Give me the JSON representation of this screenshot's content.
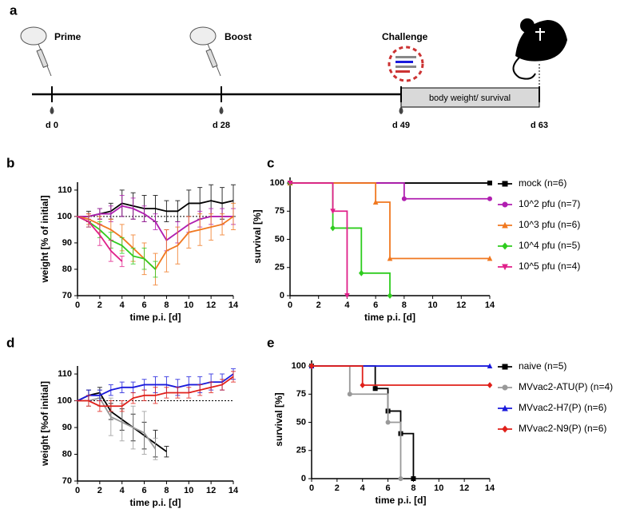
{
  "timeline": {
    "label": "a",
    "events": [
      {
        "label": "Prime"
      },
      {
        "label": "Boost"
      },
      {
        "label": "Challenge"
      }
    ],
    "days": [
      "d 0",
      "d 28",
      "d 49",
      "d 63"
    ],
    "period": "body weight/ survival"
  },
  "chart_data": [
    {
      "type": "line",
      "panel": "b",
      "xlabel": "time p.i. [d]",
      "ylabel": "weight [% of initial]",
      "x": [
        0,
        1,
        2,
        3,
        4,
        5,
        6,
        7,
        8,
        9,
        10,
        11,
        12,
        13,
        14
      ],
      "xlim": [
        0,
        14
      ],
      "xticks": [
        0,
        2,
        4,
        6,
        8,
        10,
        12,
        14
      ],
      "ylim": [
        70,
        113
      ],
      "yticks": [
        70,
        80,
        90,
        100,
        110
      ],
      "ref_line": 100,
      "series": [
        {
          "color": "#000000",
          "values": [
            100,
            100,
            101,
            102,
            105,
            104,
            103,
            103,
            102,
            102,
            105,
            105,
            106,
            105,
            106
          ],
          "errors": [
            0,
            2,
            2,
            3,
            5,
            5,
            5,
            5,
            4,
            4,
            5,
            6,
            6,
            6,
            6
          ]
        },
        {
          "color": "#b01eb0",
          "values": [
            100,
            100,
            101,
            101,
            104,
            103,
            101,
            98,
            91,
            94,
            97,
            99,
            100,
            100,
            100
          ],
          "errors": [
            0,
            1,
            2,
            3,
            4,
            4,
            3,
            3,
            4,
            4,
            3,
            3,
            3,
            3,
            3
          ]
        },
        {
          "color": "#f07820",
          "values": [
            100,
            99,
            97,
            95,
            92,
            88,
            84,
            80,
            87,
            89,
            94,
            95,
            96,
            97,
            100
          ],
          "errors": [
            0,
            2,
            3,
            4,
            5,
            5,
            6,
            6,
            8,
            7,
            6,
            6,
            5,
            4,
            5
          ]
        },
        {
          "color": "#2ecc1e",
          "values": [
            100,
            98,
            95,
            91,
            89,
            85,
            84,
            80,
            null,
            null,
            null,
            null,
            null,
            null,
            null
          ],
          "errors": [
            0,
            2,
            3,
            3,
            3,
            3,
            4,
            3,
            null,
            null,
            null,
            null,
            null,
            null,
            null
          ]
        },
        {
          "color": "#e0208a",
          "values": [
            100,
            98,
            93,
            87,
            83,
            null,
            null,
            null,
            null,
            null,
            null,
            null,
            null,
            null,
            null
          ],
          "errors": [
            0,
            2,
            4,
            4,
            2,
            null,
            null,
            null,
            null,
            null,
            null,
            null,
            null,
            null,
            null
          ]
        }
      ]
    },
    {
      "type": "step",
      "panel": "c",
      "xlabel": "time p.i. [d]",
      "ylabel": "survival [%]",
      "xlim": [
        0,
        14
      ],
      "xticks": [
        0,
        2,
        4,
        6,
        8,
        10,
        12,
        14
      ],
      "ylim": [
        0,
        105
      ],
      "yticks": [
        0,
        25,
        50,
        75,
        100
      ],
      "legend": "right",
      "series": [
        {
          "name": "mock (n=6)",
          "color": "#000000",
          "marker": "square",
          "x": [
            0,
            14
          ],
          "values": [
            100,
            100
          ]
        },
        {
          "name": "10^2 pfu (n=7)",
          "color": "#b01eb0",
          "marker": "circle",
          "x": [
            0,
            8,
            14
          ],
          "values": [
            100,
            86,
            86
          ]
        },
        {
          "name": "10^3 pfu (n=6)",
          "color": "#f07820",
          "marker": "triangle",
          "x": [
            0,
            6,
            7,
            14
          ],
          "values": [
            100,
            83,
            33,
            33
          ]
        },
        {
          "name": "10^4 pfu (n=5)",
          "color": "#2ecc1e",
          "marker": "diamond",
          "x": [
            0,
            3,
            5,
            7
          ],
          "values": [
            100,
            60,
            20,
            0
          ]
        },
        {
          "name": "10^5 pfu (n=4)",
          "color": "#e0208a",
          "marker": "triangle-down",
          "x": [
            0,
            3,
            4
          ],
          "values": [
            100,
            75,
            0
          ]
        }
      ]
    },
    {
      "type": "line",
      "panel": "d",
      "xlabel": "time p.i. [d]",
      "ylabel": "weight [%of initial]",
      "x": [
        0,
        1,
        2,
        3,
        4,
        5,
        6,
        7,
        8,
        9,
        10,
        11,
        12,
        13,
        14
      ],
      "xlim": [
        0,
        14
      ],
      "xticks": [
        0,
        2,
        4,
        6,
        8,
        10,
        12,
        14
      ],
      "ylim": [
        70,
        113
      ],
      "yticks": [
        70,
        80,
        90,
        100,
        110
      ],
      "ref_line": 100,
      "series": [
        {
          "color": "#000000",
          "values": [
            100,
            102,
            103,
            96,
            93,
            90,
            87,
            84,
            81,
            null,
            null,
            null,
            null,
            null,
            null
          ],
          "errors": [
            0,
            2,
            2,
            3,
            4,
            5,
            5,
            5,
            2,
            null,
            null,
            null,
            null,
            null,
            null
          ]
        },
        {
          "color": "#999999",
          "values": [
            100,
            100,
            101,
            94,
            92,
            90,
            88,
            82,
            null,
            null,
            null,
            null,
            null,
            null,
            null
          ],
          "errors": [
            0,
            2,
            3,
            7,
            7,
            8,
            8,
            4,
            null,
            null,
            null,
            null,
            null,
            null,
            null
          ]
        },
        {
          "color": "#1a1adc",
          "values": [
            100,
            102,
            102,
            104,
            105,
            105,
            106,
            106,
            106,
            105,
            106,
            106,
            107,
            107,
            110
          ],
          "errors": [
            0,
            2,
            2,
            2,
            2,
            2,
            2,
            3,
            3,
            3,
            3,
            3,
            3,
            3,
            2
          ]
        },
        {
          "color": "#e0201a",
          "values": [
            100,
            100,
            98,
            98,
            98,
            101,
            102,
            102,
            103,
            103,
            103,
            104,
            105,
            106,
            109
          ],
          "errors": [
            0,
            2,
            2,
            2,
            2,
            2,
            2,
            3,
            2,
            2,
            2,
            2,
            2,
            2,
            2
          ]
        }
      ]
    },
    {
      "type": "step",
      "panel": "e",
      "xlabel": "time p.i. [d]",
      "ylabel": "survival [%]",
      "xlim": [
        0,
        14
      ],
      "xticks": [
        0,
        2,
        4,
        6,
        8,
        10,
        12,
        14
      ],
      "ylim": [
        0,
        105
      ],
      "yticks": [
        0,
        25,
        50,
        75,
        100
      ],
      "legend": "right",
      "series": [
        {
          "name": "naive (n=5)",
          "color": "#000000",
          "marker": "square",
          "x": [
            0,
            5,
            6,
            7,
            8
          ],
          "values": [
            100,
            80,
            60,
            40,
            0
          ]
        },
        {
          "name": "MVvac2-ATU(P) (n=4)",
          "color": "#999999",
          "marker": "circle",
          "x": [
            0,
            3,
            6,
            7
          ],
          "values": [
            100,
            75,
            50,
            0
          ]
        },
        {
          "name": "MVvac2-H7(P) (n=6)",
          "color": "#1a1adc",
          "marker": "triangle",
          "x": [
            0,
            14
          ],
          "values": [
            100,
            100
          ]
        },
        {
          "name": "MVvac2-N9(P) (n=6)",
          "color": "#e0201a",
          "marker": "diamond",
          "x": [
            0,
            4,
            14
          ],
          "values": [
            100,
            83,
            83
          ]
        }
      ]
    }
  ]
}
